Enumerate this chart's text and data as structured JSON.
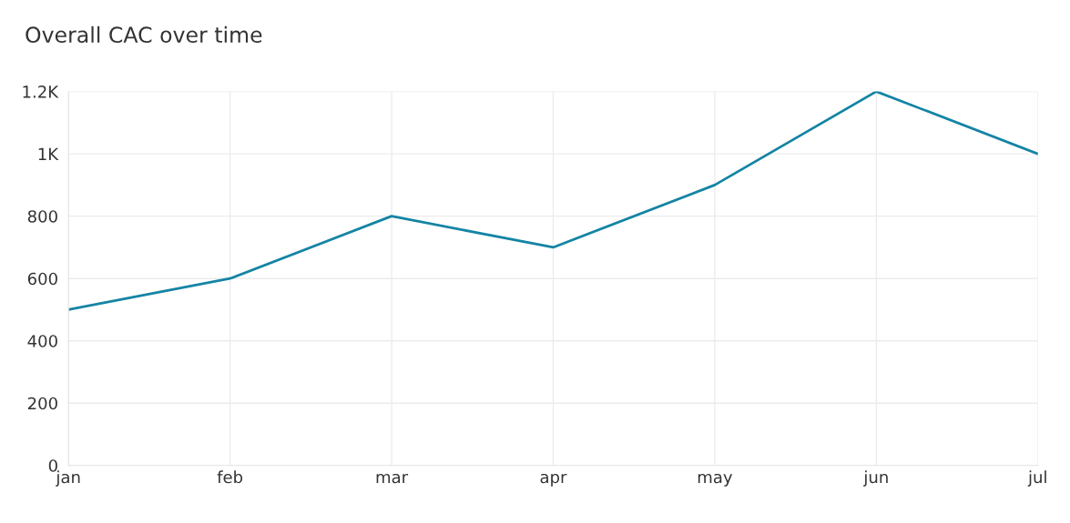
{
  "chart_data": {
    "type": "line",
    "title": "Overall CAC over time",
    "categories": [
      "jan",
      "feb",
      "mar",
      "apr",
      "may",
      "jun",
      "jul"
    ],
    "series": [
      {
        "color": "#1484a4",
        "values": [
          500,
          600,
          800,
          700,
          900,
          1200,
          1000
        ]
      }
    ],
    "ylim": [
      0,
      1200
    ],
    "yticks": [
      0,
      200,
      400,
      600,
      800,
      {
        "value": 1000,
        "label": "1K"
      },
      {
        "value": 1200,
        "label": "1.2K"
      }
    ],
    "grid": true,
    "marker": "none",
    "line_style": "solid"
  }
}
